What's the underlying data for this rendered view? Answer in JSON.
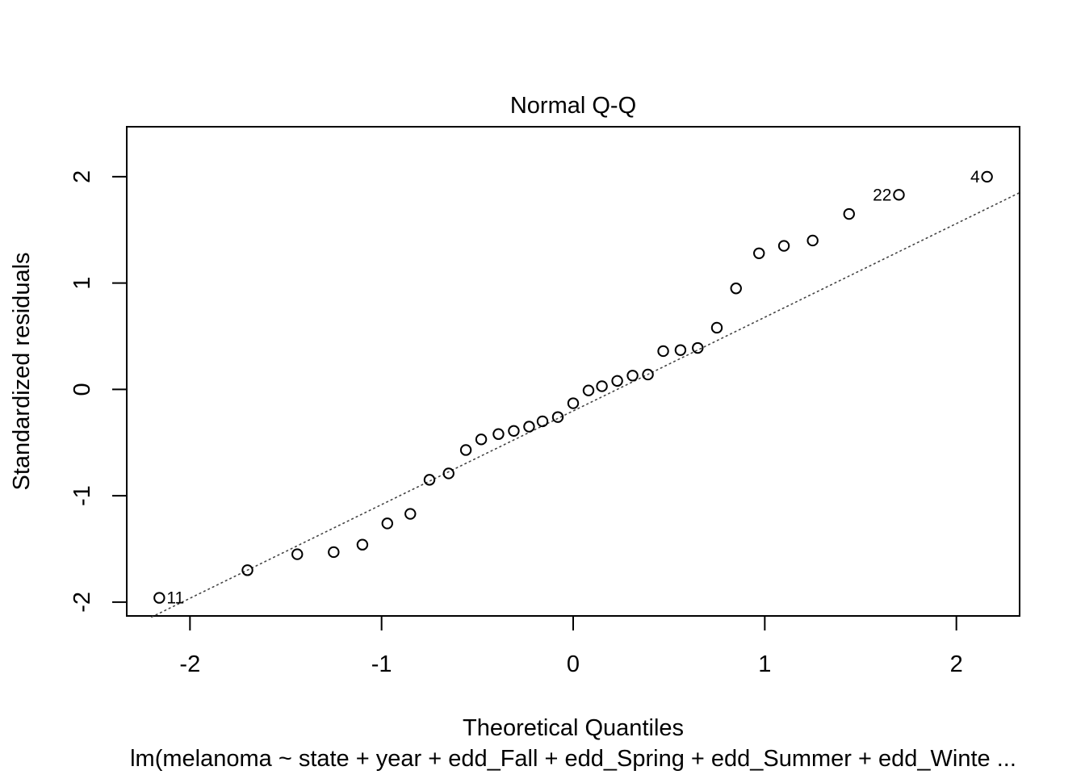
{
  "chart_data": {
    "type": "scatter",
    "title": "Normal Q-Q",
    "xlabel": "Theoretical Quantiles",
    "ylabel": "Standardized residuals",
    "subtitle": "lm(melanoma ~ state + year + edd_Fall + edd_Spring + edd_Summer + edd_Winte ...",
    "xlim": [
      -2.33,
      2.33
    ],
    "ylim": [
      -2.13,
      2.47
    ],
    "xticks": [
      -2,
      -1,
      0,
      1,
      2
    ],
    "yticks": [
      -2,
      -1,
      0,
      1,
      2
    ],
    "grid": false,
    "reference_line": {
      "style": "dotted",
      "points": [
        [
          -2.2,
          -2.14
        ],
        [
          2.33,
          1.85
        ]
      ]
    },
    "points": [
      {
        "x": -2.16,
        "y": -1.96,
        "label": "11"
      },
      {
        "x": -1.7,
        "y": -1.7
      },
      {
        "x": -1.44,
        "y": -1.55
      },
      {
        "x": -1.25,
        "y": -1.53
      },
      {
        "x": -1.1,
        "y": -1.46
      },
      {
        "x": -0.97,
        "y": -1.26
      },
      {
        "x": -0.85,
        "y": -1.17
      },
      {
        "x": -0.75,
        "y": -0.85
      },
      {
        "x": -0.65,
        "y": -0.79
      },
      {
        "x": -0.56,
        "y": -0.57
      },
      {
        "x": -0.48,
        "y": -0.47
      },
      {
        "x": -0.39,
        "y": -0.42
      },
      {
        "x": -0.31,
        "y": -0.39
      },
      {
        "x": -0.23,
        "y": -0.35
      },
      {
        "x": -0.16,
        "y": -0.3
      },
      {
        "x": -0.08,
        "y": -0.26
      },
      {
        "x": 0.0,
        "y": -0.13
      },
      {
        "x": 0.08,
        "y": -0.01
      },
      {
        "x": 0.15,
        "y": 0.03
      },
      {
        "x": 0.23,
        "y": 0.08
      },
      {
        "x": 0.31,
        "y": 0.13
      },
      {
        "x": 0.39,
        "y": 0.14
      },
      {
        "x": 0.47,
        "y": 0.36
      },
      {
        "x": 0.56,
        "y": 0.37
      },
      {
        "x": 0.65,
        "y": 0.39
      },
      {
        "x": 0.75,
        "y": 0.58
      },
      {
        "x": 0.85,
        "y": 0.95
      },
      {
        "x": 0.97,
        "y": 1.28
      },
      {
        "x": 1.1,
        "y": 1.35
      },
      {
        "x": 1.25,
        "y": 1.4
      },
      {
        "x": 1.44,
        "y": 1.65
      },
      {
        "x": 1.7,
        "y": 1.83,
        "label": "22"
      },
      {
        "x": 2.16,
        "y": 2.0,
        "label": "4"
      }
    ]
  }
}
